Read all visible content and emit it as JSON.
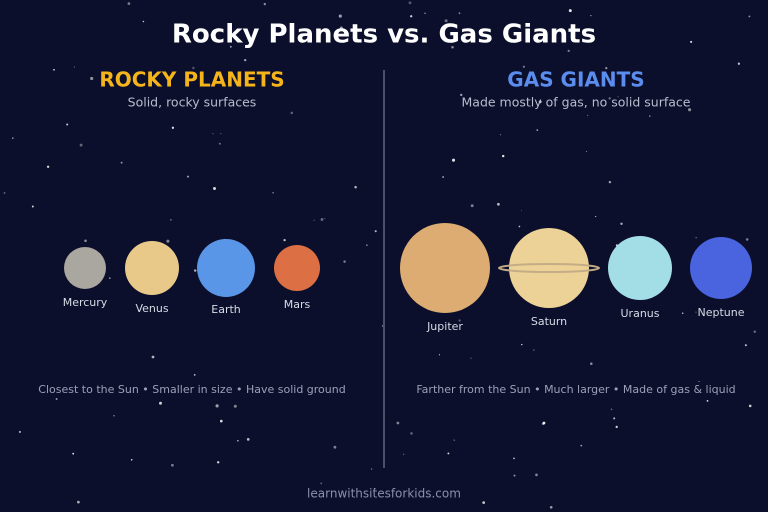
{
  "title": "Rocky Planets vs. Gas Giants",
  "panels": [
    {
      "heading": "ROCKY PLANETS",
      "subtitle": "Solid, rocky surfaces",
      "planets": [
        {
          "label": "Mercury"
        },
        {
          "label": "Venus"
        },
        {
          "label": "Earth"
        },
        {
          "label": "Mars"
        }
      ],
      "note": "Closest to the Sun • Smaller in size • Have solid ground"
    },
    {
      "heading": "GAS GIANTS",
      "subtitle": "Made mostly of gas, no solid surface",
      "planets": [
        {
          "label": "Jupiter"
        },
        {
          "label": "Saturn"
        },
        {
          "label": "Uranus"
        },
        {
          "label": "Neptune"
        }
      ],
      "note": "Farther from the Sun • Much larger • Made of gas & liquid"
    }
  ],
  "footer": "learnwithsitesforkids.com"
}
